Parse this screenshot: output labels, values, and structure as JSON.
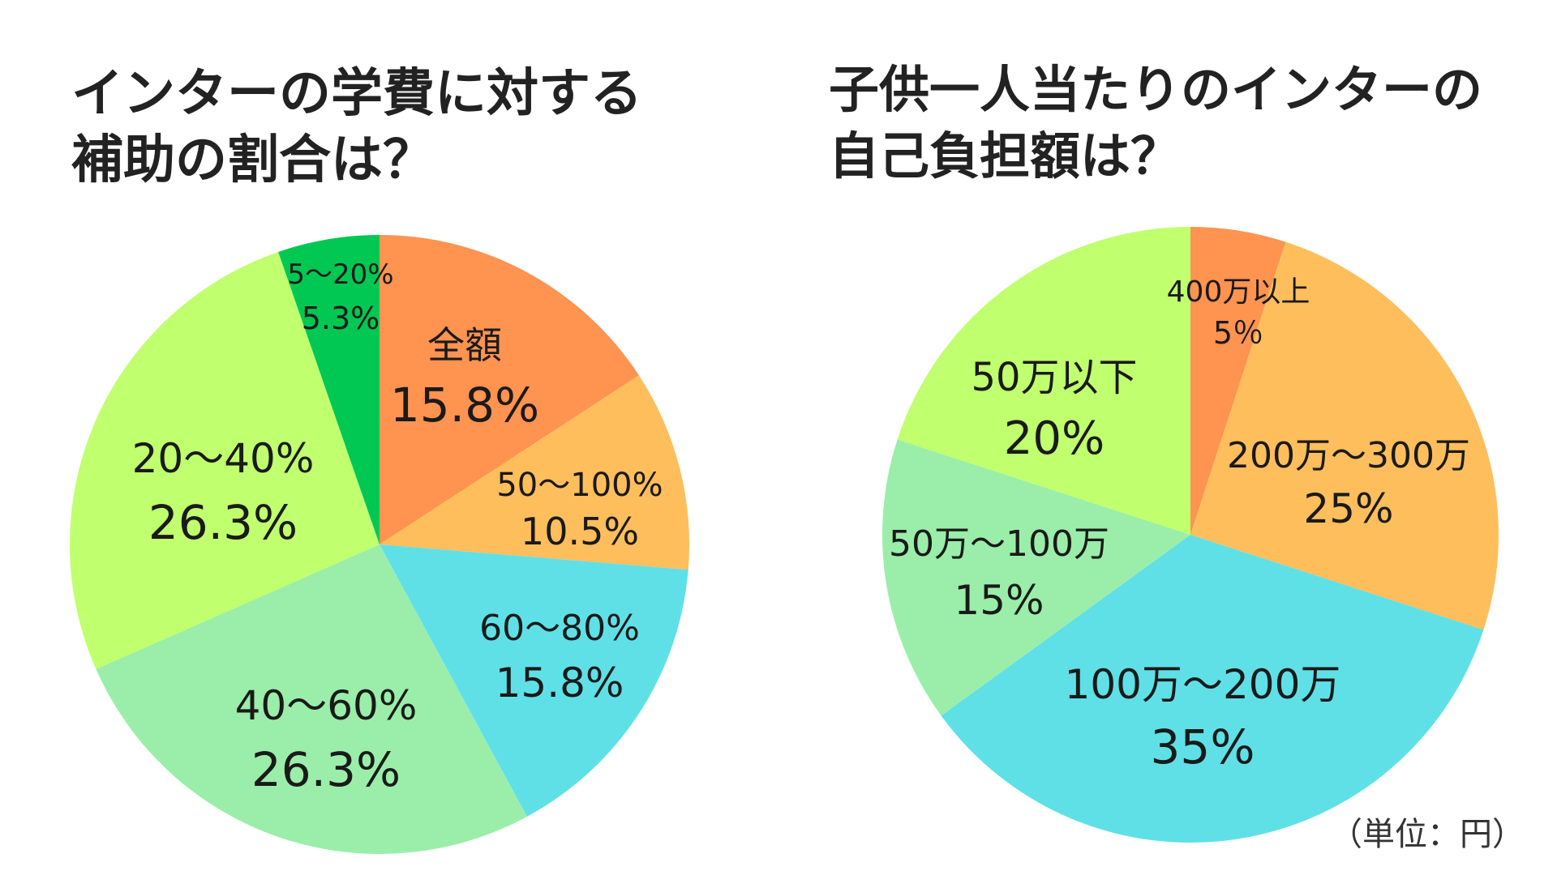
{
  "chart_data": [
    {
      "type": "pie",
      "title_lines": [
        "インターの学費に対する",
        "補助の割合は？"
      ],
      "slices": [
        {
          "category": "全額",
          "value": 15.8,
          "label": "15.8%",
          "color": "#FF9350"
        },
        {
          "category": "50〜100%",
          "value": 10.5,
          "label": "10.5%",
          "color": "#FFBE5C"
        },
        {
          "category": "60〜80%",
          "value": 15.8,
          "label": "15.8%",
          "color": "#5FE0E6"
        },
        {
          "category": "40〜60%",
          "value": 26.3,
          "label": "26.3%",
          "color": "#9AEEA9"
        },
        {
          "category": "20〜40%",
          "value": 26.3,
          "label": "26.3%",
          "color": "#C0FF6E"
        },
        {
          "category": "5〜20%",
          "value": 5.3,
          "label": "5.3%",
          "color": "#00C853"
        }
      ]
    },
    {
      "type": "pie",
      "title_lines": [
        "子供一人当たりのインターの",
        "自己負担額は？"
      ],
      "unit_note": "（単位：円）",
      "slices": [
        {
          "category": "400万以上",
          "value": 5,
          "label": "5％",
          "color": "#FF9350"
        },
        {
          "category": "200万〜300万",
          "value": 25,
          "label": "25%",
          "color": "#FFBE5C"
        },
        {
          "category": "100万〜200万",
          "value": 35,
          "label": "35%",
          "color": "#5FE0E6"
        },
        {
          "category": "50万〜100万",
          "value": 15,
          "label": "15%",
          "color": "#9AEEA9"
        },
        {
          "category": "50万以下",
          "value": 20,
          "label": "20%",
          "color": "#C0FF6E"
        }
      ]
    }
  ]
}
